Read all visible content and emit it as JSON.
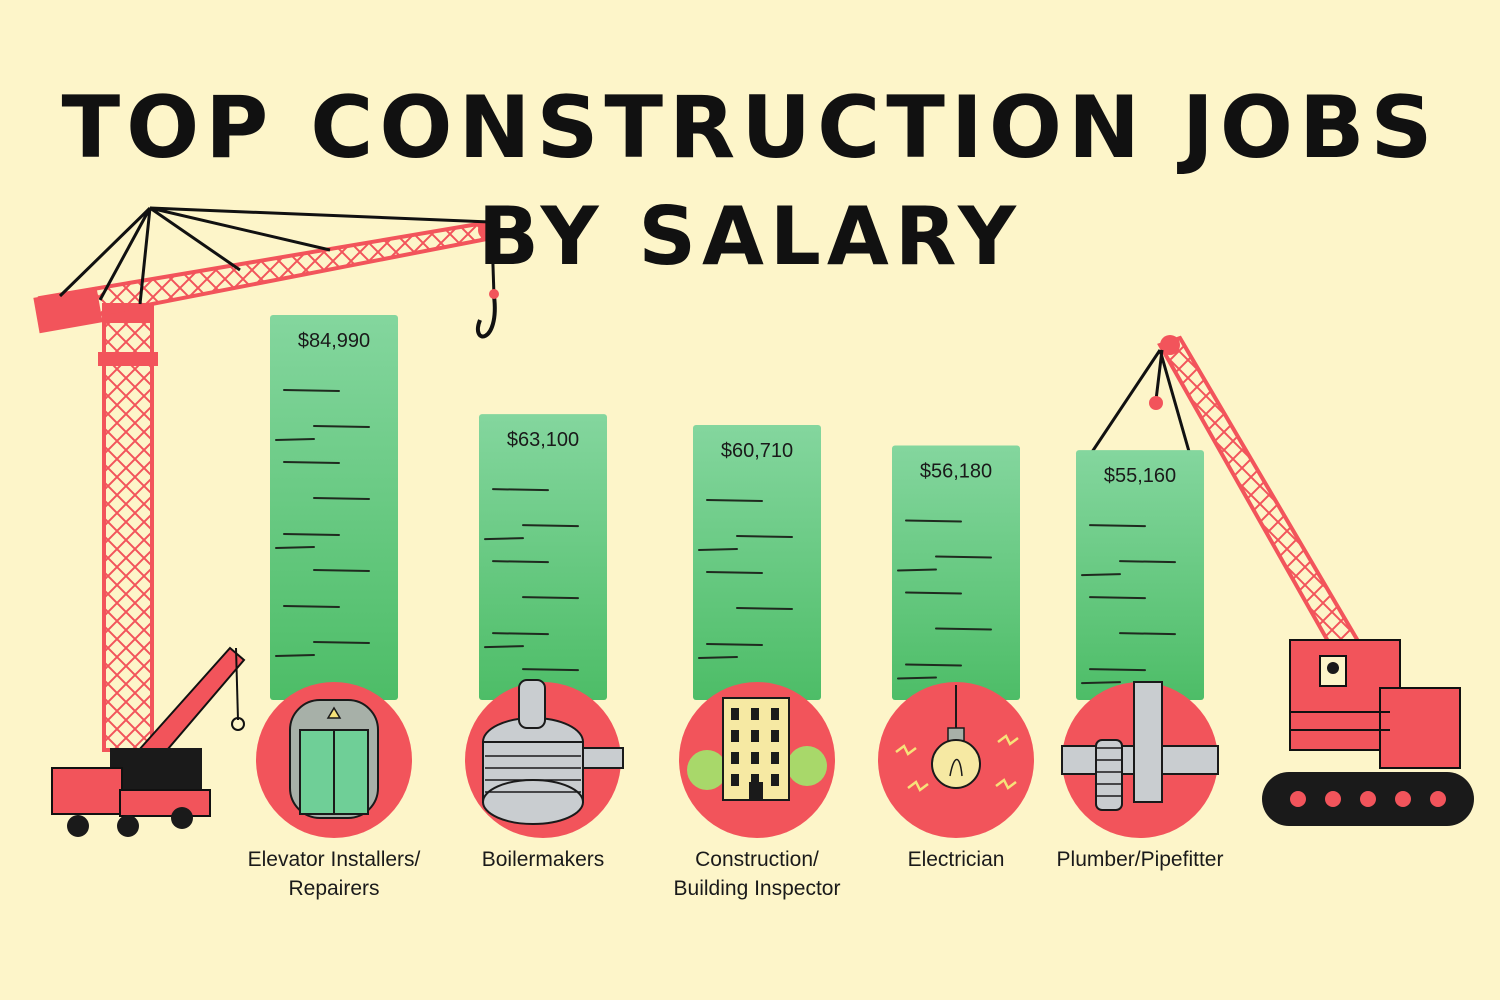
{
  "title_line1": "Top Construction Jobs",
  "title_line2": "By Salary",
  "colors": {
    "background": "#fdf5c9",
    "bar_top": "#7fd39a",
    "bar_bottom": "#4fbf6a",
    "circle": "#f2545b",
    "crane": "#f2545b",
    "ink": "#111111"
  },
  "chart_data": {
    "type": "bar",
    "categories": [
      "Elevator Installers/ Repairers",
      "Boilermakers",
      "Construction/ Building Inspector",
      "Electrician",
      "Plumber/Pipefitter"
    ],
    "category_lines": [
      [
        "Elevator Installers/",
        "Repairers"
      ],
      [
        "Boilermakers"
      ],
      [
        "Construction/",
        "Building Inspector"
      ],
      [
        "Electrician"
      ],
      [
        "Plumber/Pipefitter"
      ]
    ],
    "values": [
      84990,
      63100,
      60710,
      56180,
      55160
    ],
    "value_labels": [
      "$84,990",
      "$63,100",
      "$60,710",
      "$56,180",
      "$55,160"
    ],
    "icons": [
      "elevator-icon",
      "boiler-icon",
      "building-icon",
      "lightbulb-icon",
      "pipe-icon"
    ],
    "title": "Top Construction Jobs By Salary",
    "xlabel": "",
    "ylabel": "",
    "grid": false
  }
}
